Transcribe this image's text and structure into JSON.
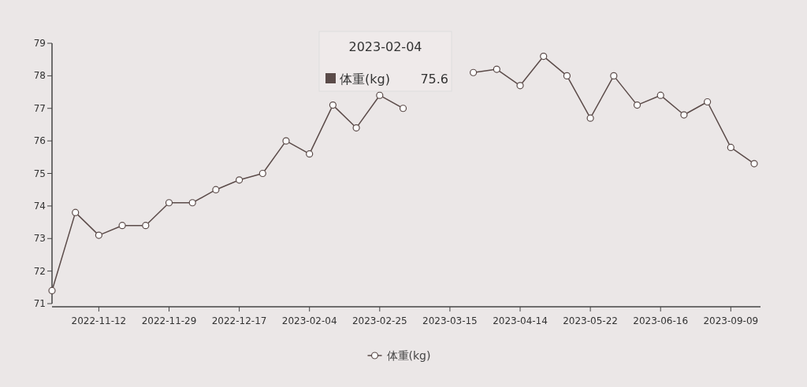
{
  "chart_data": {
    "type": "line",
    "categories": [
      null,
      null,
      "2022-11-12",
      null,
      null,
      "2022-11-29",
      null,
      null,
      "2022-12-17",
      null,
      null,
      "2023-02-04",
      null,
      null,
      "2023-02-25",
      null,
      null,
      "2023-03-15",
      null,
      null,
      "2023-04-14",
      null,
      null,
      "2023-05-22",
      null,
      null,
      "2023-06-16",
      null,
      null,
      "2023-09-09",
      null
    ],
    "series": [
      {
        "name": "体重(kg)",
        "color": "#5b4b49",
        "values": [
          71.4,
          73.8,
          73.1,
          73.4,
          73.4,
          74.1,
          74.1,
          74.5,
          74.8,
          75.0,
          76.0,
          75.6,
          77.1,
          76.4,
          77.4,
          77.0,
          null,
          null,
          78.1,
          78.2,
          77.7,
          78.6,
          78.0,
          76.7,
          78.0,
          77.1,
          77.4,
          76.8,
          77.2,
          75.8,
          75.3
        ]
      }
    ],
    "ylim": [
      71,
      79
    ],
    "yticks": [
      71,
      72,
      73,
      74,
      75,
      76,
      77,
      78,
      79
    ],
    "marker": "circle",
    "line_style": "solid",
    "legend": "bottom",
    "grid": false,
    "annotations": [
      "2023-02-04",
      "体重(kg)",
      "75.6"
    ]
  }
}
